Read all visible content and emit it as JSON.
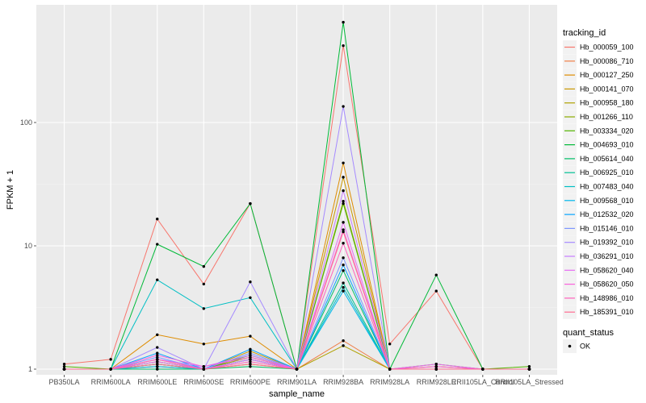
{
  "chart_data": {
    "type": "line",
    "title": "",
    "xlabel": "sample_name",
    "ylabel": "FPKM + 1",
    "y_scale": "log10",
    "ylim": [
      0.9,
      900
    ],
    "y_ticks": [
      1,
      10,
      100
    ],
    "grid": true,
    "legend_position": "right",
    "categories": [
      "PB350LA",
      "RRIM600LA",
      "RRIM600LE",
      "RRIM600SE",
      "RRIM600PE",
      "RRIM901LA",
      "RRIM928BA",
      "RRIM928LA",
      "RRIM928LE",
      "RRII105LA_Control",
      "RRII105LA_Stressed"
    ],
    "legend_title": "tracking_id",
    "series": [
      {
        "name": "Hb_000059_100",
        "color": "#F8766D",
        "values": [
          1.1,
          1.2,
          16.5,
          4.9,
          22,
          1.0,
          420,
          1.6,
          4.3,
          1.0,
          1.0
        ]
      },
      {
        "name": "Hb_000086_710",
        "color": "#EF7F48",
        "values": [
          1.0,
          1.0,
          1.2,
          1.0,
          1.2,
          1.0,
          1.7,
          1.0,
          1.0,
          1.0,
          1.0
        ]
      },
      {
        "name": "Hb_000127_250",
        "color": "#DE8C00",
        "values": [
          1.0,
          1.0,
          1.9,
          1.6,
          1.85,
          1.0,
          47,
          1.0,
          1.05,
          1.0,
          1.0
        ]
      },
      {
        "name": "Hb_000141_070",
        "color": "#C99800",
        "values": [
          1.0,
          1.0,
          1.05,
          1.0,
          1.4,
          1.0,
          36,
          1.0,
          1.0,
          1.0,
          1.0
        ]
      },
      {
        "name": "Hb_000958_180",
        "color": "#B0A100",
        "values": [
          1.0,
          1.0,
          1.0,
          1.0,
          1.1,
          1.0,
          1.55,
          1.0,
          1.0,
          1.0,
          1.0
        ]
      },
      {
        "name": "Hb_001266_110",
        "color": "#8BAB00",
        "values": [
          1.0,
          1.0,
          1.1,
          1.0,
          1.25,
          1.0,
          23,
          1.0,
          1.0,
          1.0,
          1.0
        ]
      },
      {
        "name": "Hb_003334_020",
        "color": "#53B400",
        "values": [
          1.05,
          1.0,
          1.15,
          1.0,
          1.3,
          1.0,
          22,
          1.0,
          1.1,
          1.0,
          1.05
        ]
      },
      {
        "name": "Hb_004693_010",
        "color": "#00BA38",
        "values": [
          1.0,
          1.0,
          10.3,
          6.8,
          22,
          1.0,
          650,
          1.0,
          5.8,
          1.0,
          1.0
        ]
      },
      {
        "name": "Hb_005614_040",
        "color": "#00BE67",
        "values": [
          1.0,
          1.0,
          1.0,
          1.0,
          1.05,
          1.0,
          6.3,
          1.0,
          1.0,
          1.0,
          1.0
        ]
      },
      {
        "name": "Hb_006925_010",
        "color": "#00C094",
        "values": [
          1.0,
          1.0,
          1.1,
          1.0,
          1.2,
          1.0,
          5.0,
          1.0,
          1.0,
          1.0,
          1.0
        ]
      },
      {
        "name": "Hb_007483_040",
        "color": "#00BFC4",
        "values": [
          1.0,
          1.0,
          5.3,
          3.1,
          3.8,
          1.0,
          4.6,
          1.0,
          1.0,
          1.0,
          1.0
        ]
      },
      {
        "name": "Hb_009568_010",
        "color": "#00B6EB",
        "values": [
          1.0,
          1.0,
          1.05,
          1.0,
          1.2,
          1.0,
          4.3,
          1.0,
          1.0,
          1.0,
          1.0
        ]
      },
      {
        "name": "Hb_012532_020",
        "color": "#06A4FF",
        "values": [
          1.0,
          1.0,
          1.35,
          1.0,
          1.45,
          1.0,
          7.0,
          1.0,
          1.0,
          1.0,
          1.0
        ]
      },
      {
        "name": "Hb_015146_010",
        "color": "#7E96FF",
        "values": [
          1.0,
          1.0,
          1.25,
          1.0,
          1.35,
          1.0,
          8.0,
          1.0,
          1.0,
          1.0,
          1.0
        ]
      },
      {
        "name": "Hb_019392_010",
        "color": "#A58AFF",
        "values": [
          1.0,
          1.0,
          1.5,
          1.0,
          5.1,
          1.0,
          135,
          1.0,
          1.0,
          1.0,
          1.0
        ]
      },
      {
        "name": "Hb_036291_010",
        "color": "#C77CFF",
        "values": [
          1.0,
          1.0,
          1.2,
          1.05,
          1.3,
          1.0,
          28,
          1.0,
          1.0,
          1.0,
          1.0
        ]
      },
      {
        "name": "Hb_058620_040",
        "color": "#E76BF3",
        "values": [
          1.0,
          1.0,
          1.15,
          1.0,
          1.2,
          1.0,
          15.5,
          1.0,
          1.1,
          1.0,
          1.0
        ]
      },
      {
        "name": "Hb_058620_050",
        "color": "#FA62DB",
        "values": [
          1.0,
          1.0,
          1.3,
          1.05,
          1.25,
          1.0,
          13.5,
          1.0,
          1.05,
          1.0,
          1.0
        ]
      },
      {
        "name": "Hb_148986_010",
        "color": "#FF62BC",
        "values": [
          1.0,
          1.0,
          1.2,
          1.0,
          1.15,
          1.0,
          10.5,
          1.0,
          1.0,
          1.0,
          1.0
        ]
      },
      {
        "name": "Hb_185391_010",
        "color": "#FF6C91",
        "values": [
          1.0,
          1.0,
          1.1,
          1.0,
          1.1,
          1.0,
          13.0,
          1.0,
          1.0,
          1.0,
          1.0
        ]
      }
    ],
    "legend2_title": "quant_status",
    "legend2_items": [
      "OK"
    ]
  }
}
